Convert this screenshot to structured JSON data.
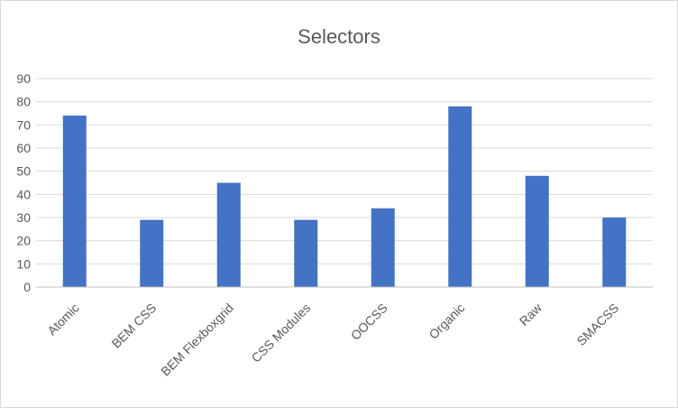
{
  "chart_data": {
    "type": "bar",
    "title": "Selectors",
    "categories": [
      "Atomic",
      "BEM CSS",
      "BEM Flexboxgrid",
      "CSS Modules",
      "OOCSS",
      "Organic",
      "Raw",
      "SMACSS"
    ],
    "values": [
      74,
      29,
      45,
      29,
      34,
      78,
      48,
      30
    ],
    "ylim": [
      0,
      90
    ],
    "yticks": [
      0,
      10,
      20,
      30,
      40,
      50,
      60,
      70,
      80,
      90
    ],
    "grid": true,
    "legend": "none",
    "bar_color": "#4472c4"
  }
}
